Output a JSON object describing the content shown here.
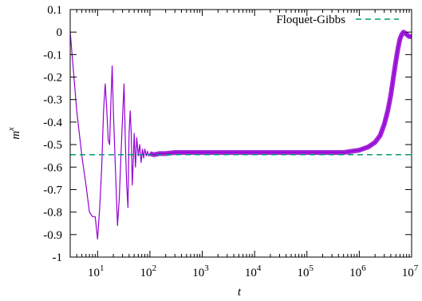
{
  "chart_data": {
    "type": "line",
    "title": "",
    "xlabel": "t",
    "ylabel": "m",
    "ylabel_superscript": "x",
    "x_scale": "log",
    "xlim": [
      3,
      10000000
    ],
    "ylim": [
      -1,
      0.1
    ],
    "grid": false,
    "legend_placement": "top-right",
    "x_ticks": [
      {
        "value": 10,
        "base": "10",
        "exp": "1"
      },
      {
        "value": 100,
        "base": "10",
        "exp": "2"
      },
      {
        "value": 1000,
        "base": "10",
        "exp": "3"
      },
      {
        "value": 10000,
        "base": "10",
        "exp": "4"
      },
      {
        "value": 100000,
        "base": "10",
        "exp": "5"
      },
      {
        "value": 1000000,
        "base": "10",
        "exp": "6"
      },
      {
        "value": 10000000,
        "base": "10",
        "exp": "7"
      }
    ],
    "y_ticks": [
      {
        "value": 0.1,
        "label": "0.1"
      },
      {
        "value": 0,
        "label": "0"
      },
      {
        "value": -0.1,
        "label": "-0.1"
      },
      {
        "value": -0.2,
        "label": "-0.2"
      },
      {
        "value": -0.3,
        "label": "-0.3"
      },
      {
        "value": -0.4,
        "label": "-0.4"
      },
      {
        "value": -0.5,
        "label": "-0.5"
      },
      {
        "value": -0.6,
        "label": "-0.6"
      },
      {
        "value": -0.7,
        "label": "-0.7"
      },
      {
        "value": -0.8,
        "label": "-0.8"
      },
      {
        "value": -0.9,
        "label": "-0.9"
      },
      {
        "value": -1,
        "label": "-1"
      }
    ],
    "series": [
      {
        "color": "#9400d3",
        "style": "solid",
        "x": [
          3,
          4,
          5,
          6,
          7,
          8,
          9,
          10,
          11,
          12,
          13,
          14,
          15,
          16,
          17,
          18,
          19,
          20,
          22,
          24,
          26,
          28,
          30,
          32,
          34,
          36,
          38,
          40,
          42,
          44,
          46,
          48,
          50,
          53,
          56,
          60,
          64,
          68,
          72,
          76,
          80,
          85,
          90,
          95,
          100,
          120,
          150,
          200,
          300,
          500,
          1000,
          2000,
          5000,
          10000,
          20000,
          50000,
          100000,
          200000,
          500000,
          1000000,
          1500000,
          2000000,
          2500000,
          3000000,
          3500000,
          4000000,
          4500000,
          5000000,
          5500000,
          6000000,
          6500000,
          7000000,
          8000000,
          9000000,
          10000000
        ],
        "y": [
          0.0,
          -0.35,
          -0.55,
          -0.68,
          -0.8,
          -0.82,
          -0.82,
          -0.92,
          -0.78,
          -0.6,
          -0.35,
          -0.23,
          -0.35,
          -0.48,
          -0.5,
          -0.3,
          -0.15,
          -0.35,
          -0.62,
          -0.86,
          -0.74,
          -0.55,
          -0.38,
          -0.23,
          -0.5,
          -0.68,
          -0.78,
          -0.45,
          -0.35,
          -0.45,
          -0.68,
          -0.58,
          -0.45,
          -0.6,
          -0.47,
          -0.55,
          -0.5,
          -0.58,
          -0.52,
          -0.56,
          -0.52,
          -0.55,
          -0.53,
          -0.55,
          -0.54,
          -0.545,
          -0.54,
          -0.54,
          -0.535,
          -0.535,
          -0.535,
          -0.535,
          -0.535,
          -0.535,
          -0.535,
          -0.535,
          -0.535,
          -0.535,
          -0.535,
          -0.525,
          -0.51,
          -0.49,
          -0.46,
          -0.41,
          -0.35,
          -0.28,
          -0.2,
          -0.13,
          -0.07,
          -0.03,
          -0.01,
          0.0,
          -0.01,
          -0.02,
          -0.02
        ]
      },
      {
        "name": "Floquet-Gibbs",
        "color": "#009e73",
        "style": "dashed",
        "x": [
          3,
          10000000
        ],
        "y": [
          -0.545,
          -0.545
        ]
      }
    ]
  }
}
